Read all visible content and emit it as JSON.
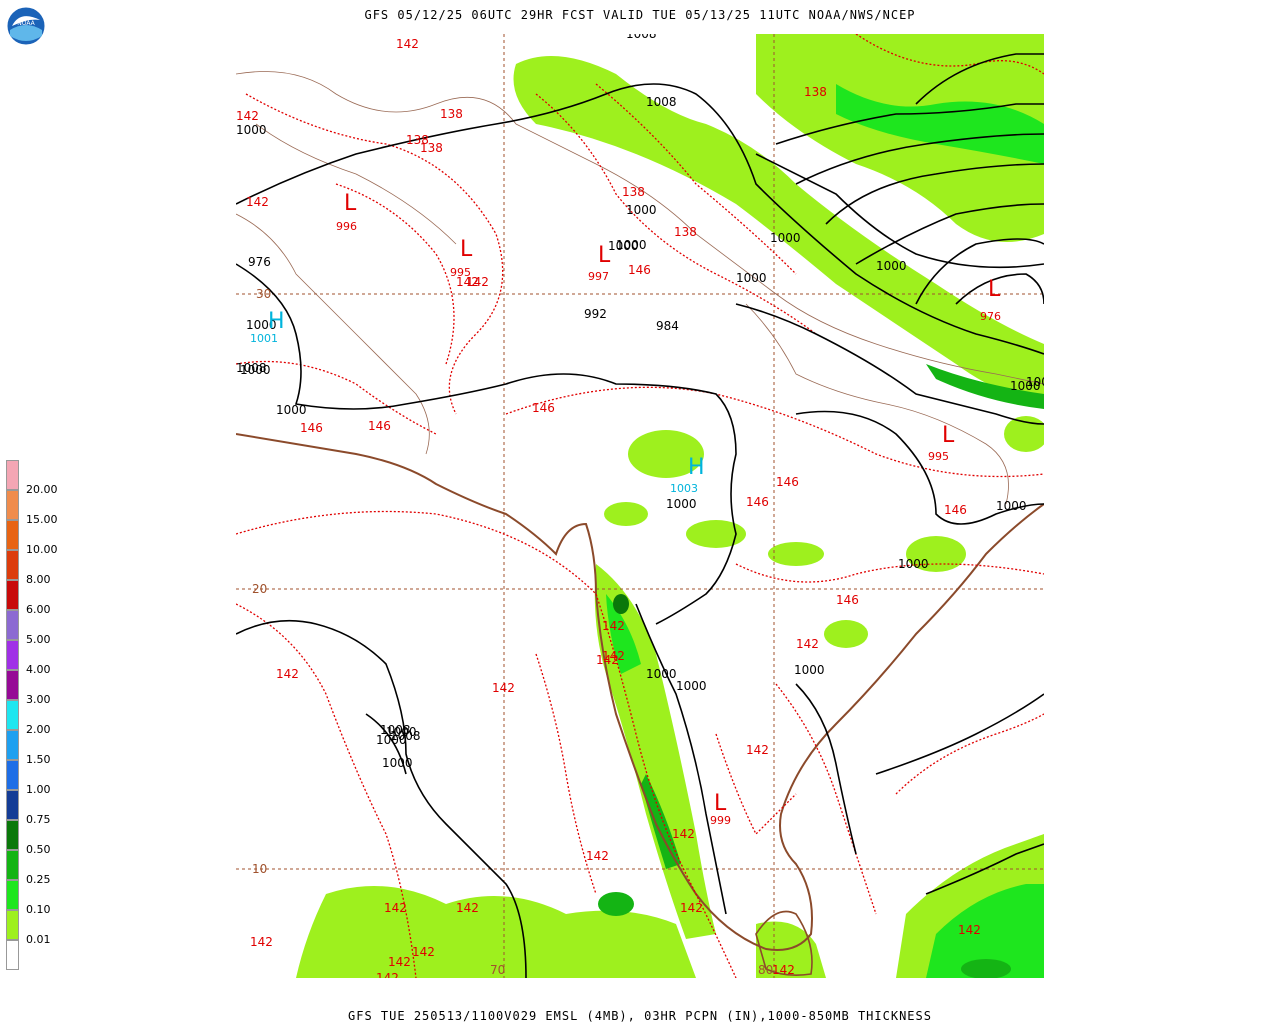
{
  "header": {
    "top_title": "GFS 05/12/25 06UTC 29HR FCST VALID TUE 05/13/25 11UTC NOAA/NWS/NCEP",
    "bottom_title": "GFS TUE 250513/1100V029 EMSL (4MB), 03HR PCPN (IN),1000-850MB THICKNESS",
    "logo_text": "NOAA"
  },
  "legend": {
    "items": [
      {
        "label": "20.00",
        "color": "#f4a6b4"
      },
      {
        "label": "15.00",
        "color": "#f08c4c"
      },
      {
        "label": "10.00",
        "color": "#e86414"
      },
      {
        "label": "8.00",
        "color": "#dc3c0c"
      },
      {
        "label": "6.00",
        "color": "#c80a0a"
      },
      {
        "label": "5.00",
        "color": "#8c6ad2"
      },
      {
        "label": "4.00",
        "color": "#a030e6"
      },
      {
        "label": "3.00",
        "color": "#960a96"
      },
      {
        "label": "2.00",
        "color": "#1ee6f0"
      },
      {
        "label": "1.50",
        "color": "#1ea0f0"
      },
      {
        "label": "1.00",
        "color": "#1e6ee6"
      },
      {
        "label": "0.75",
        "color": "#143c96"
      },
      {
        "label": "0.50",
        "color": "#0a780a"
      },
      {
        "label": "0.25",
        "color": "#14b414"
      },
      {
        "label": "0.10",
        "color": "#1ee61e"
      },
      {
        "label": "0.01",
        "color": "#9ef01e"
      },
      {
        "label": "",
        "color": "#ffffff"
      }
    ]
  },
  "map": {
    "lat_labels": [
      "30",
      "20",
      "10"
    ],
    "lon_labels": [
      "70",
      "80"
    ],
    "pressure_labels": [
      "1008",
      "1008",
      "1000",
      "1000",
      "1000",
      "1000",
      "1000",
      "992",
      "984",
      "976",
      "1000",
      "1000",
      "1000",
      "1000",
      "1000",
      "1000",
      "1000",
      "1000",
      "1000",
      "1000",
      "1000",
      "1000",
      "1000",
      "1000",
      "1008",
      "1008",
      "1008",
      "1000",
      "1000"
    ],
    "thickness_labels": [
      "142",
      "138",
      "138",
      "138",
      "142",
      "142",
      "142",
      "138",
      "138",
      "138",
      "146",
      "142",
      "146",
      "146",
      "146",
      "146",
      "146",
      "146",
      "146",
      "142",
      "142",
      "142",
      "142",
      "142",
      "142",
      "142",
      "142",
      "142",
      "142",
      "142",
      "142",
      "142",
      "142",
      "142",
      "142",
      "142",
      "142"
    ],
    "low_centers": [
      {
        "mark": "L",
        "value": "996"
      },
      {
        "mark": "L",
        "value": "995"
      },
      {
        "mark": "L",
        "value": "997"
      },
      {
        "mark": "L",
        "value": "995"
      },
      {
        "mark": "L",
        "value": "999"
      },
      {
        "mark": "L",
        "value": "976"
      }
    ],
    "high_centers": [
      {
        "mark": "H",
        "value": "1001"
      },
      {
        "mark": "H",
        "value": "1003"
      }
    ],
    "colors": {
      "coast": "#8b4a2b",
      "border": "#9a6a55",
      "isobar": "#000000",
      "thickness": "#e00000",
      "high": "#00b4dc",
      "grid": "#a0522d"
    }
  }
}
